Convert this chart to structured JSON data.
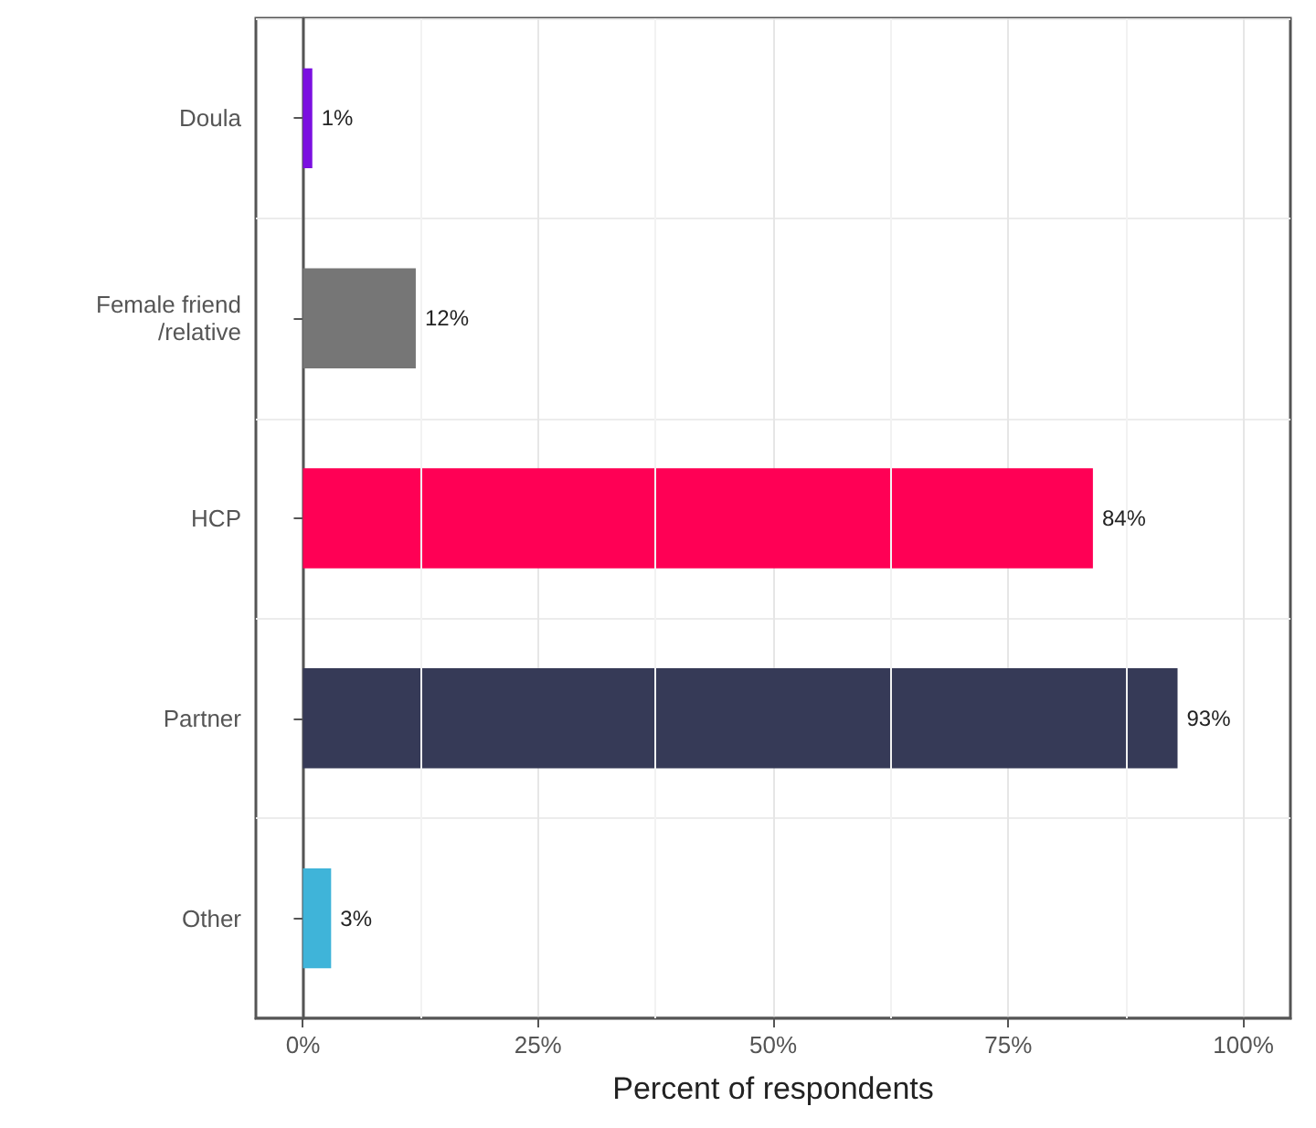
{
  "chart_data": {
    "type": "bar",
    "orientation": "horizontal",
    "xlabel": "Percent of respondents",
    "categories": [
      "Doula",
      "Female friend\n/relative",
      "HCP",
      "Partner",
      "Other"
    ],
    "values": [
      1,
      12,
      84,
      93,
      3
    ],
    "colors": [
      "#7b10e0",
      "#767676",
      "#ff0055",
      "#363a57",
      "#3fb4d9"
    ],
    "value_labels": [
      "1%",
      "12%",
      "84%",
      "93%",
      "3%"
    ],
    "xlim": [
      -5,
      105
    ],
    "xticks": [
      {
        "value": 0,
        "label": "0%"
      },
      {
        "value": 25,
        "label": "25%"
      },
      {
        "value": 50,
        "label": "50%"
      },
      {
        "value": 75,
        "label": "75%"
      },
      {
        "value": 100,
        "label": "100%"
      }
    ],
    "grid": true
  }
}
